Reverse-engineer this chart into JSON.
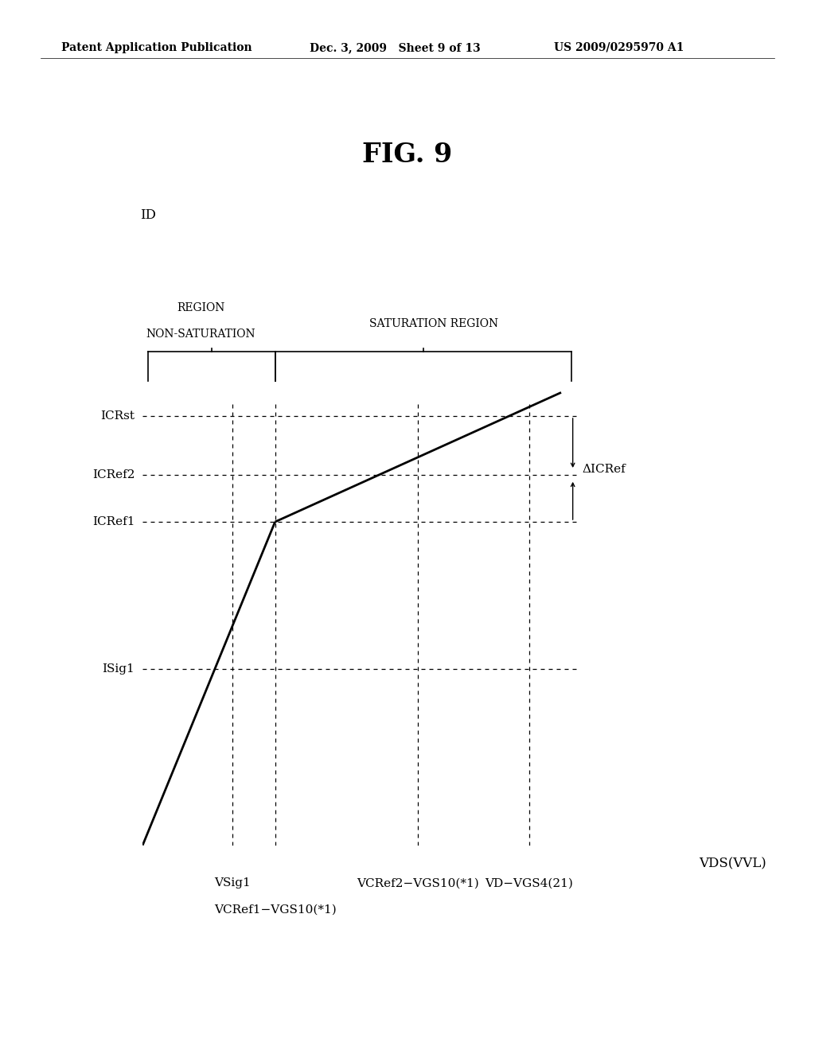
{
  "title": "FIG. 9",
  "header_left": "Patent Application Publication",
  "header_center": "Dec. 3, 2009   Sheet 9 of 13",
  "header_right": "US 2009/0295970 A1",
  "ylabel": "ID",
  "xlabel": "VDS(VVL)",
  "region_left_line1": "NON-SATURATION",
  "region_left_line2": "REGION",
  "region_right": "SATURATION REGION",
  "y_labels": [
    "ICRst",
    "ICRef2",
    "ICRef1",
    "ISig1"
  ],
  "y_values": [
    0.73,
    0.63,
    0.55,
    0.3
  ],
  "x_labels": [
    "VSig1",
    "VCRef1−VGS10(*1)",
    "VCRef2−VGS10(*1)",
    "VD−VGS4(21)"
  ],
  "x_values": [
    0.17,
    0.25,
    0.52,
    0.73
  ],
  "delta_label": "ΔICRef",
  "bg_color": "#ffffff",
  "font_size_title": 24,
  "font_size_labels": 11,
  "font_size_header": 10,
  "font_size_axis_label": 12,
  "font_size_region": 10
}
